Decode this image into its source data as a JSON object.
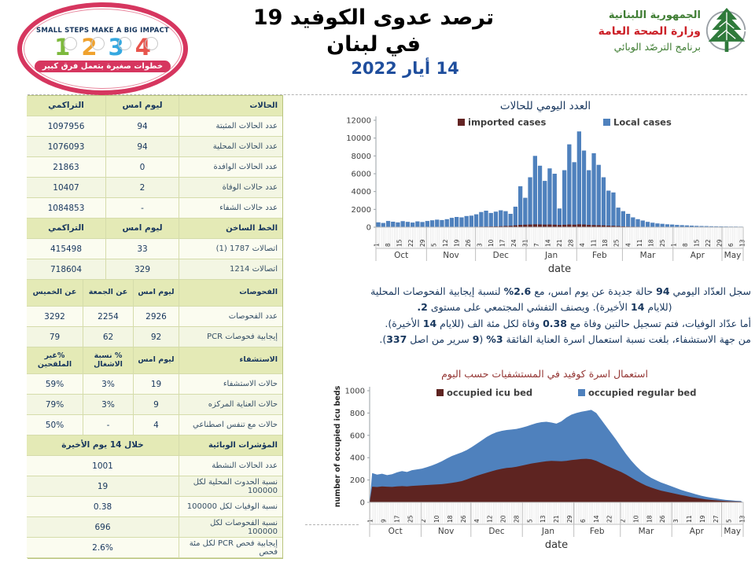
{
  "header": {
    "sticker": {
      "top_text": "SMALL STEPS MAKE A BIG IMPACT",
      "numbers": [
        "1",
        "2",
        "3",
        "4"
      ],
      "bottom_text": "خطوات صغيرة بتعمل فرق كبير"
    },
    "title": "ترصد عدوى الكوفيد 19 في لبنان",
    "date": "14 أيار 2022",
    "logo": {
      "line1": "الجمهورية اللبنانية",
      "line2": "وزارة الصحة العامة",
      "line3": "برنامج الترصّد الوبائي"
    }
  },
  "table": {
    "sections": [
      {
        "name": "cases",
        "cols": 3,
        "header": [
          "الحالات",
          "ليوم امس",
          "التراكمي"
        ],
        "rows": [
          [
            "عدد الحالات المثبتة",
            "94",
            "1097956"
          ],
          [
            "عدد الحالات المحلية",
            "94",
            "1076093"
          ],
          [
            "عدد الحالات الوافدة",
            "0",
            "21863"
          ],
          [
            "عدد حالات الوفاة",
            "2",
            "10407"
          ],
          [
            "عدد حالات الشفاء",
            "-",
            "1084853"
          ]
        ]
      },
      {
        "name": "hotline",
        "cols": 3,
        "header": [
          "الخط الساخن",
          "ليوم امس",
          "التراكمي"
        ],
        "rows": [
          [
            "اتصالات 1787 (1)",
            "33",
            "415498"
          ],
          [
            "اتصالات 1214",
            "329",
            "718604"
          ]
        ]
      },
      {
        "name": "tests",
        "cols": 4,
        "header": [
          "الفحوصات",
          "ليوم امس",
          "عن الجمعة",
          "عن الخميس"
        ],
        "rows": [
          [
            "عدد الفحوصات",
            "2926",
            "2254",
            "3292"
          ],
          [
            "إيجابية فحوصات PCR",
            "92",
            "62",
            "79"
          ]
        ]
      },
      {
        "name": "hospitalization",
        "cols": 4,
        "header": [
          "الاستشفاء",
          "ليوم امس",
          "% نسبة الاشغال",
          "%غير الملقحين"
        ],
        "rows": [
          [
            "حالات الاستشفاء",
            "19",
            "3%",
            "59%"
          ],
          [
            "حالات العناية المركزه",
            "9",
            "3%",
            "79%"
          ],
          [
            "حالات مع تنفس اصطناعي",
            "4",
            "-",
            "50%"
          ]
        ]
      },
      {
        "name": "indicators",
        "cols": 2,
        "header": [
          "المؤشرات الوبائية",
          "خلال 14 يوم الأخيرة"
        ],
        "rows": [
          [
            "عدد الحالات النشطة",
            "1001"
          ],
          [
            "نسبة الحدوث المحلية لكل 100000",
            "19"
          ],
          [
            "نسبة الوفيات لكل 100000",
            "0.38"
          ],
          [
            "نسبة الفحوصات لكل 100000",
            "696"
          ],
          [
            "إيجابية فحص PCR لكل مئة فحص",
            "2.6%"
          ]
        ]
      }
    ]
  },
  "summary": {
    "lines": [
      "سجل العدّاد اليومي 94 حالة جديدة عن يوم امس، مع 2.6% لنسبة إيجابية الفحوصات المحلية",
      "(للايام 14 الأخيرة). ويصنف التفشي المجتمعي على مستوى 2.",
      "أما عدّاد الوفيات، فتم تسجيل حالتين وفاة مع 0.38 وفاة لكل مئة الف (للايام 14 الأخيرة).",
      "من جهة الاستشفاء، بلغت نسبة استعمال اسرة العناية الفائقة 3% (9 سرير من اصل 337)."
    ]
  },
  "chart_data": [
    {
      "type": "bar",
      "title": "العدد اليومي للحالات",
      "xlabel": "date",
      "ylabel": "",
      "ylim": [
        0,
        12000
      ],
      "yticks": [
        0,
        2000,
        4000,
        6000,
        8000,
        10000,
        12000
      ],
      "legend_position": "top",
      "points_every_days": 3,
      "day_tick_labels": [
        "1",
        "8",
        "15",
        "22",
        "29",
        "5",
        "12",
        "19",
        "26",
        "3",
        "10",
        "17",
        "24",
        "31",
        "7",
        "14",
        "21",
        "28",
        "4",
        "11",
        "18",
        "25",
        "4",
        "11",
        "18",
        "25",
        "1",
        "8",
        "15",
        "22",
        "29",
        "6",
        "13"
      ],
      "months": [
        {
          "label": "Oct",
          "days": 31
        },
        {
          "label": "Nov",
          "days": 30
        },
        {
          "label": "Dec",
          "days": 31
        },
        {
          "label": "Jan",
          "days": 31
        },
        {
          "label": "Feb",
          "days": 28
        },
        {
          "label": "Mar",
          "days": 31
        },
        {
          "label": "Apr",
          "days": 30
        },
        {
          "label": "May",
          "days": 13
        }
      ],
      "series": [
        {
          "name": "imported cases",
          "color": "#632423",
          "values": [
            25,
            20,
            30,
            25,
            20,
            28,
            24,
            22,
            26,
            24,
            30,
            28,
            32,
            30,
            35,
            38,
            36,
            34,
            40,
            45,
            55,
            60,
            70,
            80,
            90,
            110,
            130,
            150,
            200,
            260,
            280,
            300,
            320,
            310,
            290,
            300,
            280,
            250,
            270,
            300,
            280,
            320,
            300,
            260,
            240,
            220,
            200,
            170,
            150,
            120,
            90,
            70,
            60,
            50,
            45,
            40,
            35,
            30,
            28,
            25,
            22,
            20,
            18,
            16,
            15,
            14,
            12,
            12,
            10,
            10,
            8,
            8,
            7,
            6,
            6
          ]
        },
        {
          "name": "Local cases",
          "color": "#4f81bd",
          "values": [
            550,
            480,
            700,
            620,
            540,
            680,
            600,
            520,
            650,
            580,
            700,
            780,
            850,
            800,
            900,
            1050,
            1150,
            1100,
            1250,
            1300,
            1450,
            1700,
            1850,
            1600,
            1750,
            1900,
            1800,
            1500,
            2300,
            4600,
            3300,
            5600,
            8000,
            6900,
            5200,
            6600,
            6000,
            2100,
            6400,
            9300,
            7300,
            10750,
            8600,
            6400,
            8300,
            7000,
            5600,
            4100,
            3900,
            2200,
            1800,
            1500,
            1100,
            900,
            750,
            600,
            500,
            420,
            380,
            330,
            300,
            260,
            230,
            200,
            180,
            150,
            130,
            120,
            110,
            100,
            90,
            80,
            75,
            70,
            65
          ]
        }
      ]
    },
    {
      "type": "area",
      "title": "استعمال اسرة كوفيد في المستشفيات حسب اليوم",
      "xlabel": "date",
      "ylabel": "number of occupied icu beds",
      "ylim": [
        0,
        1000
      ],
      "yticks": [
        0,
        200,
        400,
        600,
        800,
        1000
      ],
      "legend_position": "top",
      "points_every_days": 3,
      "day_tick_labels": [
        "1",
        "9",
        "17",
        "25",
        "2",
        "10",
        "18",
        "26",
        "4",
        "12",
        "20",
        "28",
        "5",
        "13",
        "21",
        "29",
        "6",
        "14",
        "22",
        "2",
        "10",
        "18",
        "26",
        "3",
        "11",
        "19",
        "27",
        "5",
        "13"
      ],
      "months": [
        {
          "label": "Oct",
          "days": 31
        },
        {
          "label": "Nov",
          "days": 30
        },
        {
          "label": "Dec",
          "days": 31
        },
        {
          "label": "Jan",
          "days": 31
        },
        {
          "label": "Feb",
          "days": 28
        },
        {
          "label": "Mar",
          "days": 31
        },
        {
          "label": "Apr",
          "days": 30
        },
        {
          "label": "May",
          "days": 13
        }
      ],
      "series": [
        {
          "name": "occupied icu bed",
          "color": "#5e2421",
          "values": [
            140,
            137,
            143,
            140,
            138,
            142,
            145,
            143,
            147,
            150,
            152,
            155,
            158,
            160,
            163,
            168,
            175,
            182,
            190,
            205,
            222,
            238,
            252,
            265,
            278,
            290,
            300,
            308,
            312,
            318,
            328,
            338,
            348,
            355,
            362,
            368,
            372,
            370,
            368,
            372,
            378,
            383,
            388,
            390,
            385,
            372,
            350,
            330,
            310,
            290,
            272,
            248,
            222,
            196,
            172,
            150,
            133,
            118,
            105,
            95,
            85,
            75,
            66,
            57,
            48,
            40,
            33,
            27,
            22,
            18,
            15,
            12,
            10,
            8,
            7
          ]
        },
        {
          "name": "occupied regular bed",
          "color": "#4f81bd",
          "values_are_cumulative_total": true,
          "values": [
            262,
            248,
            256,
            244,
            252,
            268,
            280,
            272,
            288,
            295,
            302,
            315,
            330,
            348,
            368,
            392,
            415,
            432,
            448,
            468,
            495,
            525,
            555,
            585,
            610,
            628,
            640,
            648,
            652,
            658,
            668,
            680,
            695,
            710,
            718,
            722,
            715,
            705,
            725,
            760,
            785,
            800,
            812,
            820,
            828,
            800,
            740,
            680,
            620,
            560,
            495,
            432,
            375,
            325,
            282,
            248,
            220,
            198,
            178,
            162,
            145,
            128,
            112,
            98,
            85,
            72,
            60,
            50,
            42,
            35,
            28,
            22,
            18,
            14,
            12
          ]
        }
      ]
    }
  ],
  "colors": {
    "accent_navy": "#17365d",
    "table_header_bg": "#e4eab6",
    "row_bg": "#fbfcf0",
    "row_alt_bg": "#f3f6e3",
    "local_cases": "#4f81bd",
    "imported_cases": "#632423",
    "icu_bed": "#5e2421",
    "regular_bed": "#4f81bd",
    "bottom_title_maroon": "#943634",
    "date_blue": "#1f4e9d",
    "logo_green": "#3f7d33",
    "logo_red": "#cc2229",
    "sticker_pink": "#d6365f"
  }
}
